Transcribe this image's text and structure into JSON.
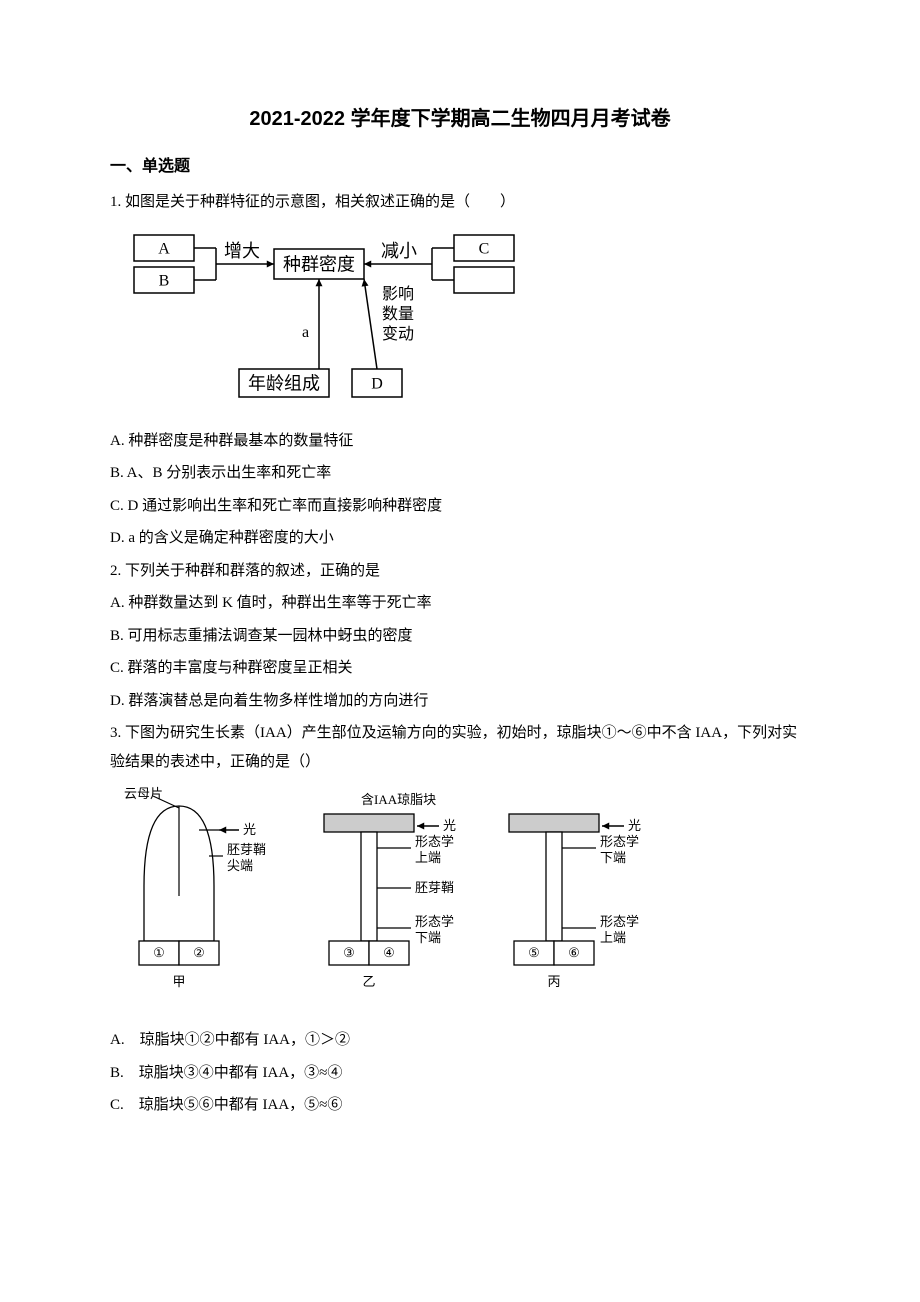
{
  "title": "2021-2022 学年度下学期高二生物四月月考试卷",
  "section": "一、单选题",
  "q1": {
    "stem": "1. 如图是关于种群特征的示意图，相关叙述正确的是（　　）",
    "optA": "A. 种群密度是种群最基本的数量特征",
    "optB": "B. A、B 分别表示出生率和死亡率",
    "optC": "C. D 通过影响出生率和死亡率而直接影响种群密度",
    "optD": "D. a 的含义是确定种群密度的大小"
  },
  "q2": {
    "stem": "2. 下列关于种群和群落的叙述，正确的是",
    "optA": "A. 种群数量达到 K 值时，种群出生率等于死亡率",
    "optB": "B. 可用标志重捕法调查某一园林中蚜虫的密度",
    "optC": "C. 群落的丰富度与种群密度呈正相关",
    "optD": "D. 群落演替总是向着生物多样性增加的方向进行"
  },
  "q3": {
    "stem": "3. 下图为研究生长素（IAA）产生部位及运输方向的实验，初始时，琼脂块①～⑥中不含 IAA，下列对实验结果的表述中，正确的是（）",
    "optA": "A.　琼脂块①②中都有 IAA，①＞②",
    "optB": "B.　琼脂块③④中都有 IAA，③≈④",
    "optC": "C.　琼脂块⑤⑥中都有 IAA，⑤≈⑥"
  },
  "d1": {
    "boxA": "A",
    "boxB": "B",
    "boxC": "C",
    "zengda": "增大",
    "jianxiao": "减小",
    "midu": "种群密度",
    "a": "a",
    "yingxiang1": "影响",
    "yingxiang2": "数量",
    "yingxiang3": "变动",
    "nianling": "年龄组成",
    "boxD": "D",
    "stroke": "#000000",
    "fill": "#ffffff",
    "font": 16,
    "fontBig": 18
  },
  "d2": {
    "label_yunmu": "云母片",
    "label_guang": "光",
    "label_jiandu1": "胚芽鞘",
    "label_jiandu2": "尖端",
    "label_hanIAA": "含IAA琼脂块",
    "label_shangduan1": "形态学",
    "label_shangduan2": "上端",
    "label_xiaduan1": "形态学",
    "label_xiaduan2": "下端",
    "label_peiya": "胚芽鞘",
    "n1": "①",
    "n2": "②",
    "n3": "③",
    "n4": "④",
    "n5": "⑤",
    "n6": "⑥",
    "cap1": "甲",
    "cap2": "乙",
    "cap3": "丙",
    "stroke": "#000000",
    "fillGray": "#cccccc",
    "fillWhite": "#ffffff",
    "font": 13
  }
}
